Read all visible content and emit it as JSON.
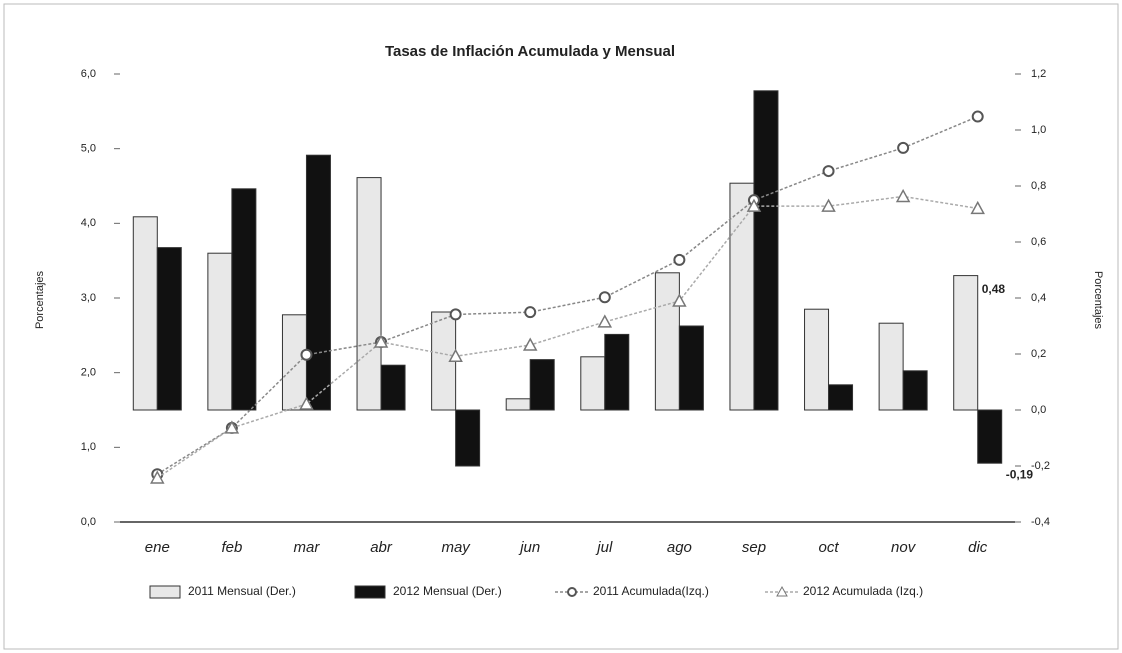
{
  "chart_data": {
    "type": "bar_line",
    "title": "Tasas de Inflación Acumulada y Mensual",
    "ylabel": "Porcentajes",
    "y2label": "Porcentajes",
    "categories": [
      "ene",
      "feb",
      "mar",
      "abr",
      "may",
      "jun",
      "jul",
      "ago",
      "sep",
      "oct",
      "nov",
      "dic"
    ],
    "series": [
      {
        "name": "2011 Mensual (Der.)",
        "type": "bar",
        "axis": "y2",
        "color": "#e8e8e8",
        "values": [
          0.69,
          0.56,
          0.34,
          0.83,
          0.35,
          0.04,
          0.19,
          0.49,
          0.81,
          0.36,
          0.31,
          0.48
        ],
        "value_labels": [
          null,
          null,
          null,
          null,
          null,
          null,
          null,
          null,
          null,
          null,
          null,
          "0,48"
        ]
      },
      {
        "name": "2012 Mensual (Der.)",
        "type": "bar",
        "axis": "y2",
        "color": "#111111",
        "values": [
          0.58,
          0.79,
          0.91,
          0.16,
          -0.2,
          0.18,
          0.27,
          0.3,
          1.14,
          0.09,
          0.14,
          -0.19
        ],
        "value_labels": [
          null,
          null,
          null,
          null,
          null,
          null,
          null,
          null,
          null,
          null,
          null,
          "-0,19"
        ]
      },
      {
        "name": "2011 Acumulada(Izq.)",
        "type": "line",
        "marker": "circle",
        "color": "#888888",
        "values": [
          0.64,
          1.26,
          2.24,
          2.41,
          2.78,
          2.81,
          3.01,
          3.51,
          4.31,
          4.7,
          5.01,
          5.43
        ]
      },
      {
        "name": "2012 Acumulada (Izq.)",
        "type": "line",
        "marker": "triangle",
        "color": "#aaaaaa",
        "values": [
          0.59,
          1.26,
          1.58,
          2.41,
          2.22,
          2.37,
          2.68,
          2.96,
          4.23,
          4.23,
          4.36,
          4.2
        ]
      }
    ],
    "ylim": [
      0,
      6
    ],
    "yticks": [
      {
        "value": 0,
        "label": "0,0"
      },
      {
        "value": 1,
        "label": "1,0"
      },
      {
        "value": 2,
        "label": "2,0"
      },
      {
        "value": 3,
        "label": "3,0"
      },
      {
        "value": 4,
        "label": "4,0"
      },
      {
        "value": 5,
        "label": "5,0"
      },
      {
        "value": 6,
        "label": "6,0"
      }
    ],
    "y2lim": [
      -0.4,
      1.2
    ],
    "y2ticks": [
      {
        "value": -0.4,
        "label": "-0,4"
      },
      {
        "value": -0.2,
        "label": "-0,2"
      },
      {
        "value": 0,
        "label": "0,0"
      },
      {
        "value": 0.2,
        "label": "0,2"
      },
      {
        "value": 0.4,
        "label": "0,4"
      },
      {
        "value": 0.6,
        "label": "0,6"
      },
      {
        "value": 0.8,
        "label": "0,8"
      },
      {
        "value": 1,
        "label": "1,0"
      },
      {
        "value": 1.2,
        "label": "1,2"
      }
    ],
    "legend": "bottom"
  }
}
